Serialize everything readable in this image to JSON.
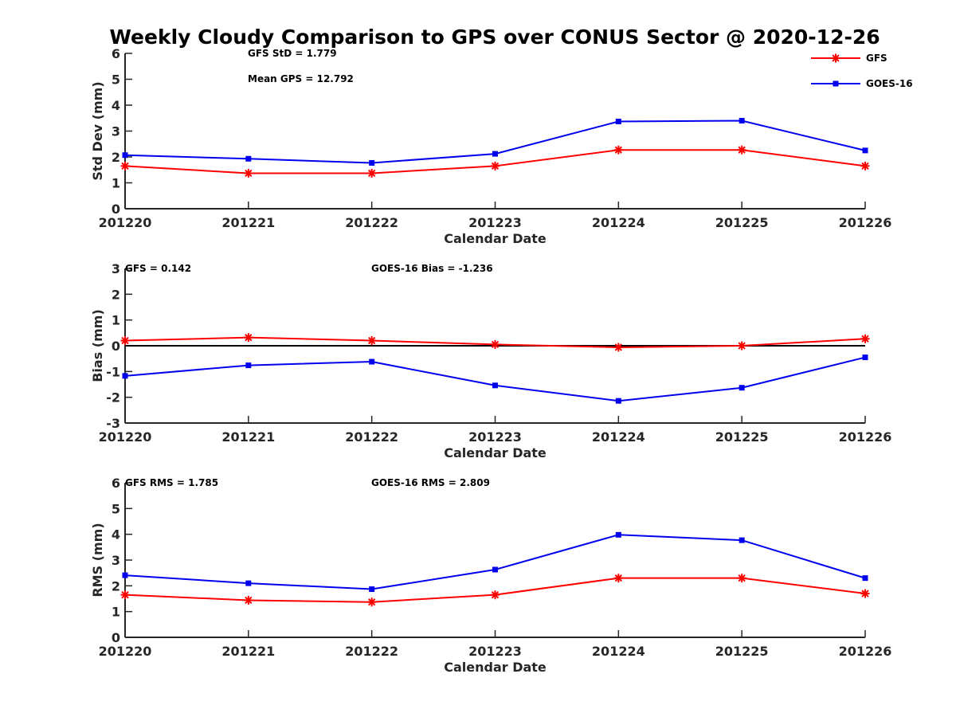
{
  "title": "Weekly Cloudy Comparison to GPS over CONUS Sector @ 2020-12-26",
  "colors": {
    "gfs": "#ff0000",
    "goes16": "#0000ee",
    "axis": "#262626"
  },
  "legend": {
    "placement": "top-right",
    "items": [
      "GFS",
      "GOES-16"
    ]
  },
  "chart_data": [
    {
      "type": "line",
      "x": [
        "201220",
        "201221",
        "201222",
        "201223",
        "201224",
        "201225",
        "201226"
      ],
      "xlabel": "Calendar Date",
      "ylabel": "Std Dev (mm)",
      "ylim": [
        0,
        6
      ],
      "yticks": [
        "0",
        "1",
        "2",
        "3",
        "4",
        "5",
        "6"
      ],
      "series": [
        {
          "name": "GFS",
          "marker": "asterisk",
          "values": [
            1.65,
            1.37,
            1.37,
            1.65,
            2.27,
            2.27,
            1.65
          ]
        },
        {
          "name": "GOES-16",
          "marker": "square",
          "values": [
            2.07,
            1.93,
            1.77,
            2.12,
            3.37,
            3.4,
            2.25
          ]
        }
      ],
      "annotations": [
        "GFS StD = 1.779",
        "Mean GPS = 12.792"
      ]
    },
    {
      "type": "line",
      "x": [
        "201220",
        "201221",
        "201222",
        "201223",
        "201224",
        "201225",
        "201226"
      ],
      "xlabel": "Calendar Date",
      "ylabel": "Bias (mm)",
      "ylim": [
        -3,
        3
      ],
      "yticks": [
        "-3",
        "-2",
        "-1",
        "0",
        "1",
        "2",
        "3"
      ],
      "zero_line": true,
      "series": [
        {
          "name": "GFS",
          "marker": "asterisk",
          "values": [
            0.2,
            0.32,
            0.2,
            0.05,
            -0.06,
            0.0,
            0.27
          ]
        },
        {
          "name": "GOES-16",
          "marker": "square",
          "values": [
            -1.17,
            -0.76,
            -0.62,
            -1.54,
            -2.14,
            -1.63,
            -0.45
          ]
        }
      ],
      "annotations": [
        "GFS = 0.142",
        "GOES-16 Bias  = -1.236"
      ]
    },
    {
      "type": "line",
      "x": [
        "201220",
        "201221",
        "201222",
        "201223",
        "201224",
        "201225",
        "201226"
      ],
      "xlabel": "Calendar Date",
      "ylabel": "RMS (mm)",
      "ylim": [
        0,
        6
      ],
      "yticks": [
        "0",
        "1",
        "2",
        "3",
        "4",
        "5",
        "6"
      ],
      "series": [
        {
          "name": "GFS",
          "marker": "asterisk",
          "values": [
            1.65,
            1.44,
            1.37,
            1.65,
            2.3,
            2.3,
            1.7
          ]
        },
        {
          "name": "GOES-16",
          "marker": "square",
          "values": [
            2.41,
            2.1,
            1.87,
            2.63,
            3.98,
            3.77,
            2.3
          ]
        }
      ],
      "annotations": [
        "GFS RMS = 1.785",
        "GOES-16 RMS = 2.809"
      ]
    }
  ]
}
